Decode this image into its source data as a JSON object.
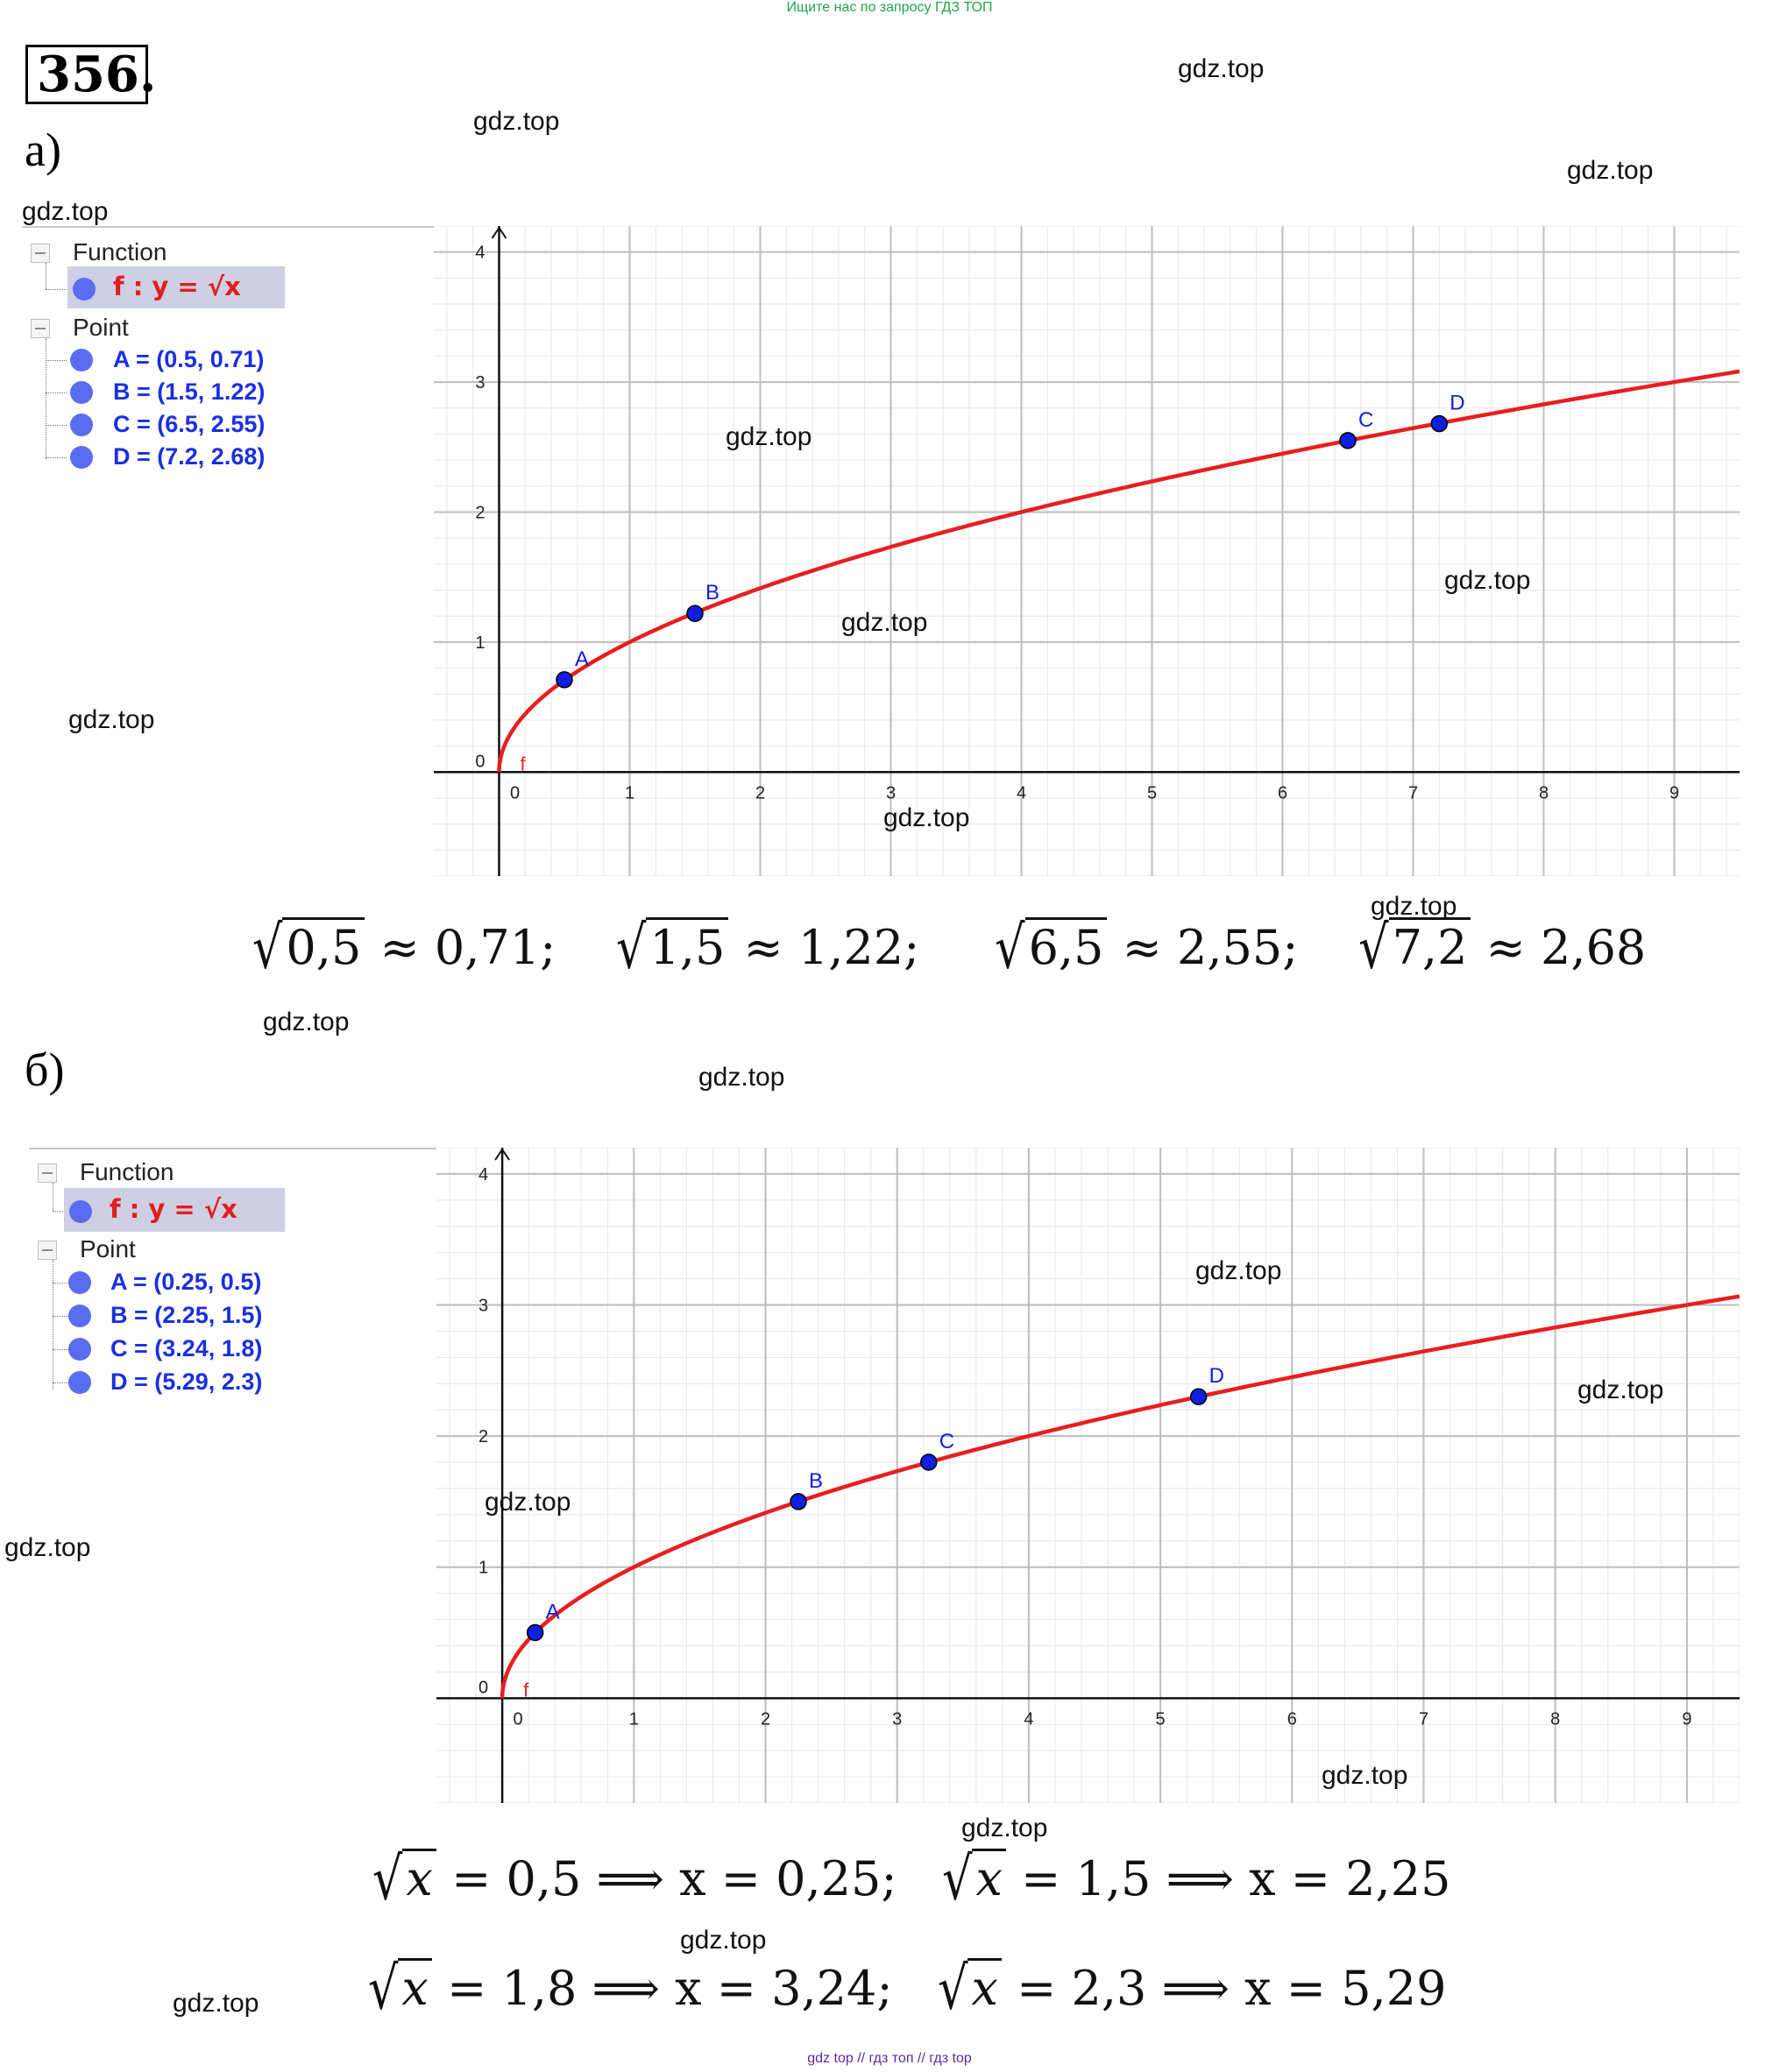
{
  "banner": "Ищите нас по запросу ГДЗ ТОП",
  "exercise_number": "356",
  "part_a_label": "а)",
  "part_b_label": "б)",
  "watermark": "gdz.top",
  "footer": "gdz top  //  гдз топ  //  гдз top",
  "part_a": {
    "algebra": {
      "function_group": "Function",
      "point_group": "Point",
      "function_expr": "f : y = √x",
      "points": [
        "A = (0.5, 0.71)",
        "B = (1.5, 1.22)",
        "C = (6.5, 2.55)",
        "D = (7.2, 2.68)"
      ]
    },
    "formulas": [
      {
        "radicand": "0,5",
        "rest": "≈ 0,71;"
      },
      {
        "radicand": "1,5",
        "rest": "≈ 1,22;"
      },
      {
        "radicand": "6,5",
        "rest": "≈ 2,55;"
      },
      {
        "radicand": "7,2",
        "rest": "≈ 2,68"
      }
    ]
  },
  "part_b": {
    "algebra": {
      "function_group": "Function",
      "point_group": "Point",
      "function_expr": "f : y = √x",
      "points": [
        "A = (0.25, 0.5)",
        "B = (2.25, 1.5)",
        "C = (3.24, 1.8)",
        "D = (5.29, 2.3)"
      ]
    },
    "formulas": [
      {
        "radicand": "x",
        "rest": "= 0,5 ⟹ x = 0,25;"
      },
      {
        "radicand": "x",
        "rest": "= 1,5 ⟹ x = 2,25"
      },
      {
        "radicand": "x",
        "rest": "= 1,8 ⟹ x = 3,24;"
      },
      {
        "radicand": "x",
        "rest": "= 2,3 ⟹ x = 5,29"
      }
    ]
  },
  "chart_data": [
    {
      "type": "line",
      "function": "y = sqrt(x)",
      "function_label": "f",
      "xlim": [
        -0.5,
        9.5
      ],
      "ylim": [
        -0.8,
        4.2
      ],
      "x_ticks": [
        0,
        1,
        2,
        3,
        4,
        5,
        6,
        7,
        8,
        9
      ],
      "y_ticks": [
        0,
        1,
        2,
        3,
        4
      ],
      "grid": true,
      "colors": {
        "curve": "#e81e1e",
        "points": "#0f1ee0",
        "grid_major": "#bdbdbd",
        "grid_minor": "#e6e6e6"
      },
      "points": [
        {
          "label": "A",
          "x": 0.5,
          "y": 0.71
        },
        {
          "label": "B",
          "x": 1.5,
          "y": 1.22
        },
        {
          "label": "C",
          "x": 6.5,
          "y": 2.55
        },
        {
          "label": "D",
          "x": 7.2,
          "y": 2.68
        }
      ]
    },
    {
      "type": "line",
      "function": "y = sqrt(x)",
      "function_label": "f",
      "xlim": [
        -0.5,
        9.4
      ],
      "ylim": [
        -0.8,
        4.2
      ],
      "x_ticks": [
        0,
        1,
        2,
        3,
        4,
        5,
        6,
        7,
        8,
        9
      ],
      "y_ticks": [
        0,
        1,
        2,
        3,
        4
      ],
      "grid": true,
      "colors": {
        "curve": "#e81e1e",
        "points": "#0f1ee0",
        "grid_major": "#bdbdbd",
        "grid_minor": "#e6e6e6"
      },
      "points": [
        {
          "label": "A",
          "x": 0.25,
          "y": 0.5
        },
        {
          "label": "B",
          "x": 2.25,
          "y": 1.5
        },
        {
          "label": "C",
          "x": 3.24,
          "y": 1.8
        },
        {
          "label": "D",
          "x": 5.29,
          "y": 2.3
        }
      ]
    }
  ]
}
